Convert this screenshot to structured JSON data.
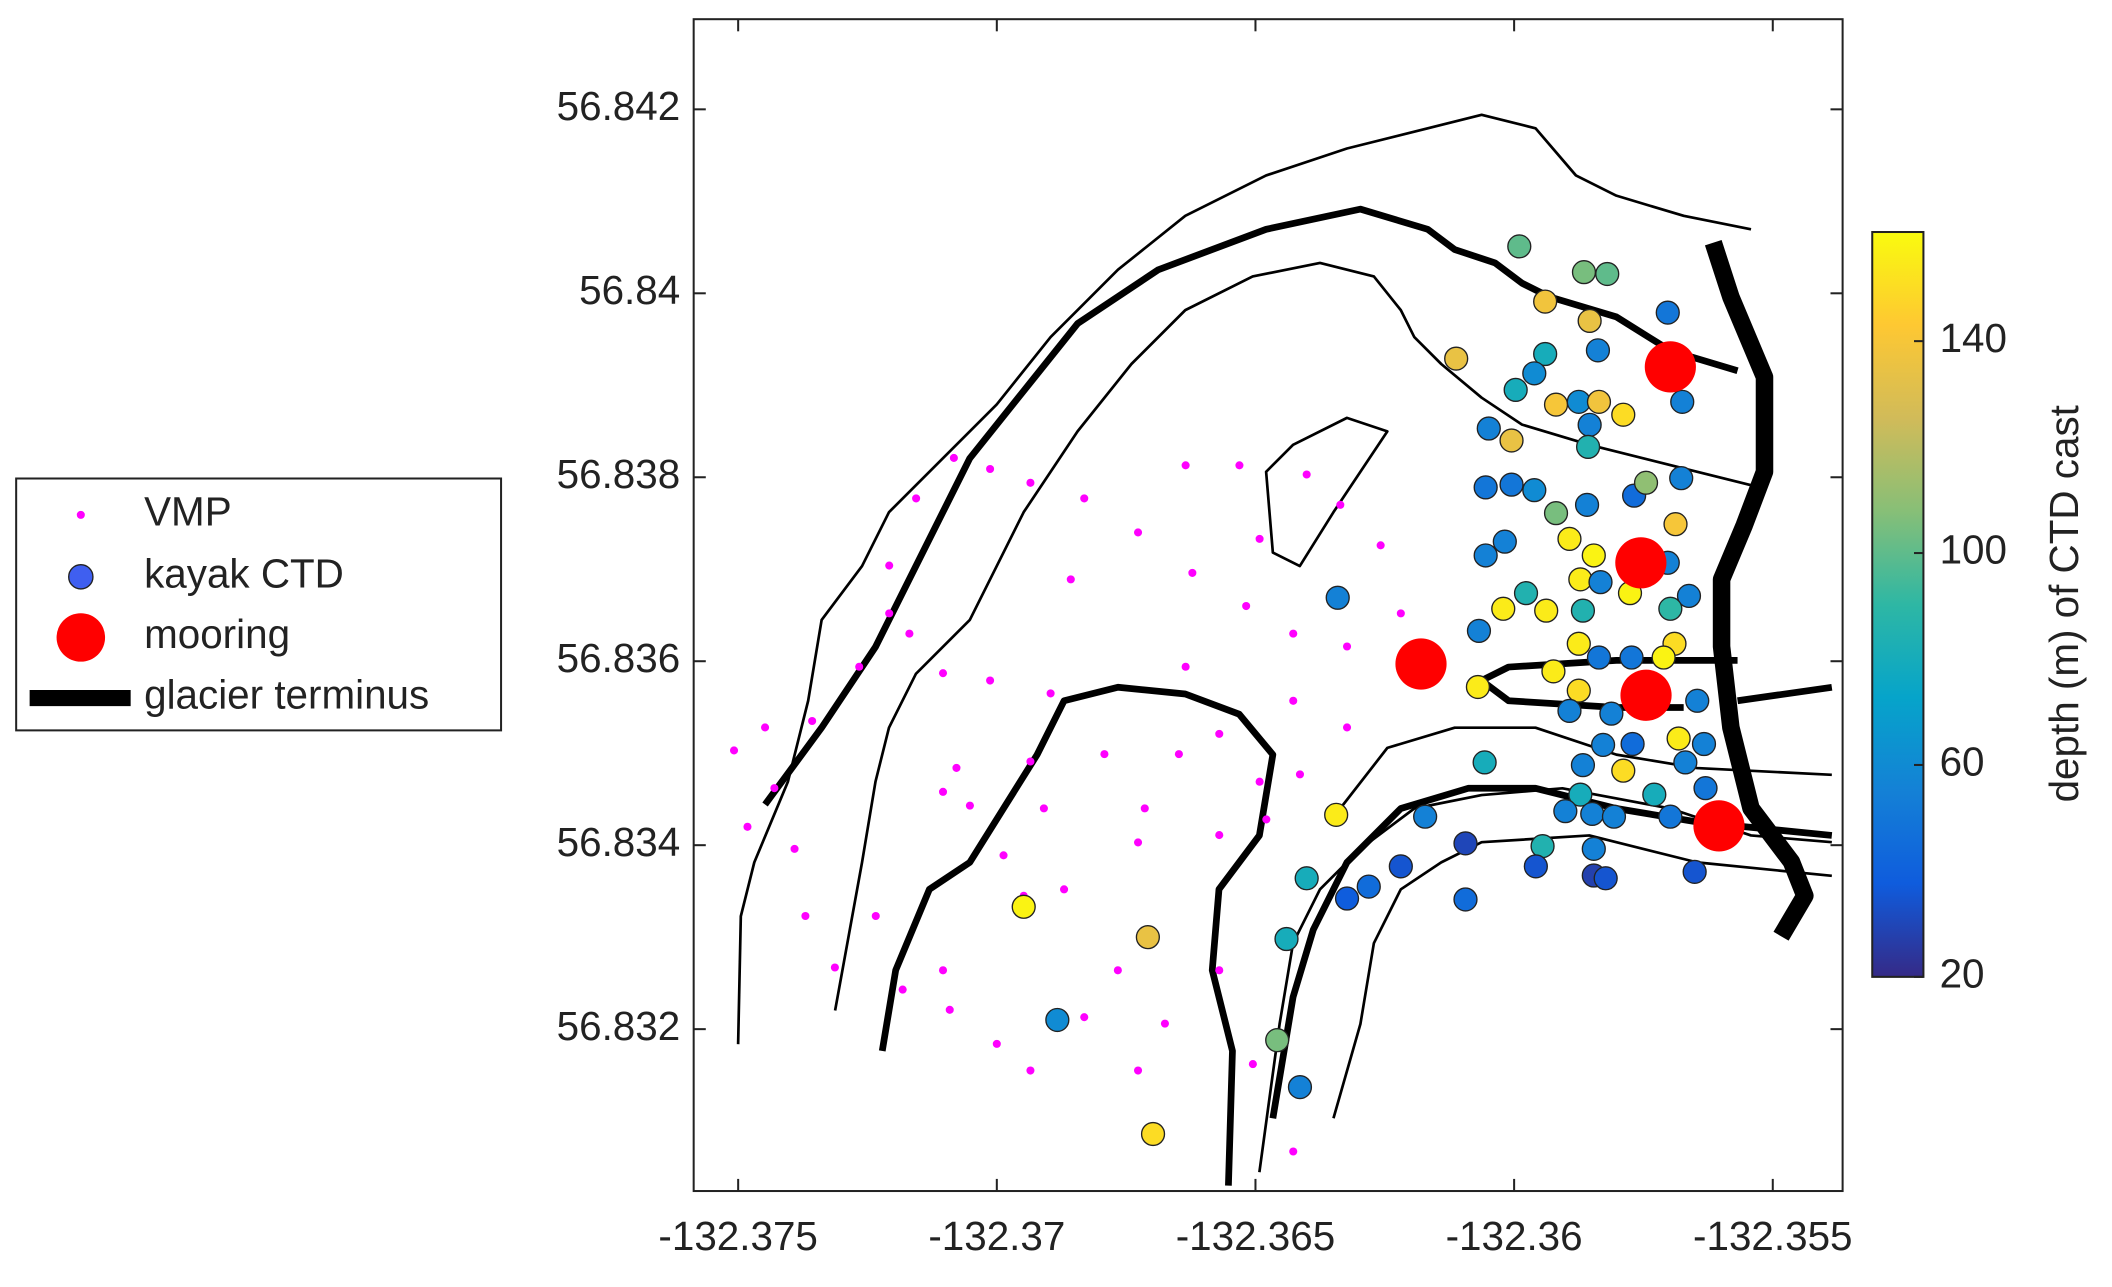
{
  "chart_data": {
    "type": "scatter",
    "xlim": [
      -132.37586,
      -132.35365
    ],
    "ylim": [
      56.83024,
      56.84298
    ],
    "xticks": [
      -132.375,
      -132.37,
      -132.365,
      -132.36,
      -132.355
    ],
    "yticks": [
      56.832,
      56.834,
      56.836,
      56.838,
      56.84,
      56.842
    ],
    "legend": "outside-left",
    "colorbar": {
      "label": "depth (m) of CTD cast",
      "clim": [
        20,
        160.6
      ],
      "ticks": [
        20,
        60,
        100,
        140
      ],
      "colormap": [
        "#352a87",
        "#0f5cdd",
        "#1481d6",
        "#06a4ca",
        "#2eb7a4",
        "#87bf77",
        "#d1bb59",
        "#fec832",
        "#f9fb0e"
      ]
    },
    "series": [
      {
        "name": "VMP",
        "color": "#ff00ff",
        "x": [
          -132.37508,
          -132.37482,
          -132.37448,
          -132.37391,
          -132.3737,
          -132.37313,
          -132.37234,
          -132.37357,
          -132.37266,
          -132.37208,
          -132.37169,
          -132.37156,
          -132.37083,
          -132.37013,
          -132.36935,
          -132.36831,
          -132.36727,
          -132.36622,
          -132.36518,
          -132.36427,
          -132.36323,
          -132.36219,
          -132.36258,
          -132.36336,
          -132.36401,
          -132.36635,
          -132.36531,
          -132.37208,
          -132.37104,
          -132.37013,
          -132.36896,
          -132.36935,
          -132.37078,
          -132.37052,
          -132.36987,
          -132.36909,
          -132.36792,
          -132.36648,
          -132.3657,
          -132.36492,
          -132.36414,
          -132.36323,
          -132.36427,
          -132.36479,
          -132.3657,
          -132.36727,
          -132.3687,
          -132.36948,
          -132.37,
          -132.36935,
          -132.36831,
          -132.36766,
          -132.36675,
          -132.36727,
          -132.36505,
          -132.36427,
          -132.3657,
          -132.37104,
          -132.37091,
          -132.37182,
          -132.36857,
          -132.36714,
          -132.36635,
          -132.36492,
          -132.3743,
          -132.37104
        ],
        "y": [
          56.83503,
          56.8342,
          56.83528,
          56.83396,
          56.83323,
          56.83267,
          56.83323,
          56.83535,
          56.83594,
          56.83652,
          56.8363,
          56.83777,
          56.83821,
          56.83809,
          56.83794,
          56.83777,
          56.8374,
          56.83696,
          56.8366,
          56.8363,
          56.83616,
          56.83652,
          56.83726,
          56.8377,
          56.83803,
          56.83813,
          56.83813,
          56.83704,
          56.83587,
          56.83579,
          56.83565,
          56.83491,
          56.83484,
          56.83443,
          56.83389,
          56.8344,
          56.83499,
          56.83499,
          56.83521,
          56.83469,
          56.83477,
          56.83528,
          56.83557,
          56.83428,
          56.83411,
          56.83403,
          56.83352,
          56.83345,
          56.83184,
          56.83155,
          56.83213,
          56.83264,
          56.83206,
          56.83155,
          56.83162,
          56.83067,
          56.83264,
          56.83264,
          56.83221,
          56.83243,
          56.83689,
          56.8344,
          56.83594,
          56.83733,
          56.83462,
          56.83458
        ]
      },
      {
        "name": "kayak CTD",
        "color": "#3f5ff0",
        "x": [
          -132.3599,
          -132.35865,
          -132.3582,
          -132.3594,
          -132.35854,
          -132.35703,
          -132.35838,
          -132.3594,
          -132.36112,
          -132.35961,
          -132.35997,
          -132.35919,
          -132.35875,
          -132.35836,
          -132.35789,
          -132.35675,
          -132.36049,
          -132.36005,
          -132.35854,
          -132.35857,
          -132.36055,
          -132.36005,
          -132.35961,
          -132.35919,
          -132.35859,
          -132.35768,
          -132.35745,
          -132.35677,
          -132.35688,
          -132.35893,
          -132.35846,
          -132.36055,
          -132.36018,
          -132.35977,
          -132.36021,
          -132.36068,
          -132.35872,
          -132.35833,
          -132.35703,
          -132.35662,
          -132.35698,
          -132.35867,
          -132.35938,
          -132.35776,
          -132.3569,
          -132.35875,
          -132.35836,
          -132.35773,
          -132.35711,
          -132.35924,
          -132.3607,
          -132.35875,
          -132.35893,
          -132.35812,
          -132.35646,
          -132.35828,
          -132.35771,
          -132.35682,
          -132.35633,
          -132.36057,
          -132.35867,
          -132.35789,
          -132.35669,
          -132.35872,
          -132.35729,
          -132.3563,
          -132.35901,
          -132.35849,
          -132.35807,
          -132.35698,
          -132.35945,
          -132.35846,
          -132.36094,
          -132.36172,
          -132.36219,
          -132.36281,
          -132.36323,
          -132.36094,
          -132.35958,
          -132.35846,
          -132.35823,
          -132.35651,
          -132.36401,
          -132.3644,
          -132.36458,
          -132.36414,
          -132.36344,
          -132.36341,
          -132.36948,
          -132.36883,
          -132.36708,
          -132.36698
        ],
        "y": [
          56.84051,
          56.84023,
          56.84021,
          56.83991,
          56.8397,
          56.83979,
          56.83938,
          56.83934,
          56.83929,
          56.83913,
          56.83895,
          56.83879,
          56.83882,
          56.83882,
          56.83868,
          56.83882,
          56.83853,
          56.8384,
          56.83857,
          56.83833,
          56.83789,
          56.83792,
          56.83786,
          56.83761,
          56.8377,
          56.8378,
          56.83794,
          56.83799,
          56.83749,
          56.83733,
          56.83715,
          56.83715,
          56.8373,
          56.83674,
          56.83657,
          56.83633,
          56.83689,
          56.83686,
          56.83707,
          56.83671,
          56.83657,
          56.83655,
          56.83655,
          56.83674,
          56.83619,
          56.83619,
          56.83604,
          56.83604,
          56.83604,
          56.83589,
          56.83572,
          56.83568,
          56.83546,
          56.83543,
          56.83557,
          56.83509,
          56.8351,
          56.83516,
          56.8351,
          56.8349,
          56.83487,
          56.83481,
          56.8349,
          56.83455,
          56.83455,
          56.83462,
          56.83437,
          56.83434,
          56.83431,
          56.83431,
          56.83399,
          56.83396,
          56.83402,
          56.83431,
          56.83377,
          56.83355,
          56.83342,
          56.83341,
          56.83377,
          56.83367,
          56.83364,
          56.83371,
          56.83364,
          56.83298,
          56.83188,
          56.83137,
          56.83433,
          56.83669,
          56.83333,
          56.8321,
          56.833,
          56.83086
        ],
        "values": [
          100,
          105,
          100,
          138,
          135,
          50,
          55,
          80,
          135,
          60,
          80,
          140,
          60,
          138,
          150,
          55,
          55,
          135,
          55,
          85,
          50,
          50,
          60,
          105,
          55,
          45,
          110,
          55,
          140,
          155,
          158,
          55,
          55,
          85,
          155,
          55,
          155,
          55,
          55,
          55,
          90,
          85,
          155,
          158,
          150,
          155,
          50,
          50,
          158,
          155,
          155,
          150,
          55,
          55,
          55,
          55,
          45,
          155,
          55,
          80,
          55,
          150,
          55,
          80,
          80,
          50,
          55,
          55,
          55,
          50,
          85,
          55,
          30,
          55,
          35,
          45,
          38,
          45,
          35,
          28,
          35,
          35,
          80,
          80,
          105,
          55,
          155,
          55,
          158,
          60,
          135,
          150
        ]
      },
      {
        "name": "mooring",
        "color": "#ff0000",
        "x": [
          -132.35698,
          -132.35755,
          -132.3618,
          -132.35745,
          -132.35604
        ],
        "y": [
          56.8392,
          56.83707,
          56.83597,
          56.83563,
          56.83421
        ]
      },
      {
        "name": "glacier terminus",
        "color": "#000000",
        "type": "line",
        "x": [
          -132.35615,
          -132.35581,
          -132.35516,
          -132.35516,
          -132.35555,
          -132.35599,
          -132.35599,
          -132.35581,
          -132.35542,
          -132.35464,
          -132.35438,
          -132.35484
        ],
        "y": [
          56.84055,
          56.83996,
          56.83909,
          56.83806,
          56.83748,
          56.83689,
          56.83616,
          56.83528,
          56.8344,
          56.83382,
          56.83345,
          56.83301
        ]
      }
    ]
  }
}
